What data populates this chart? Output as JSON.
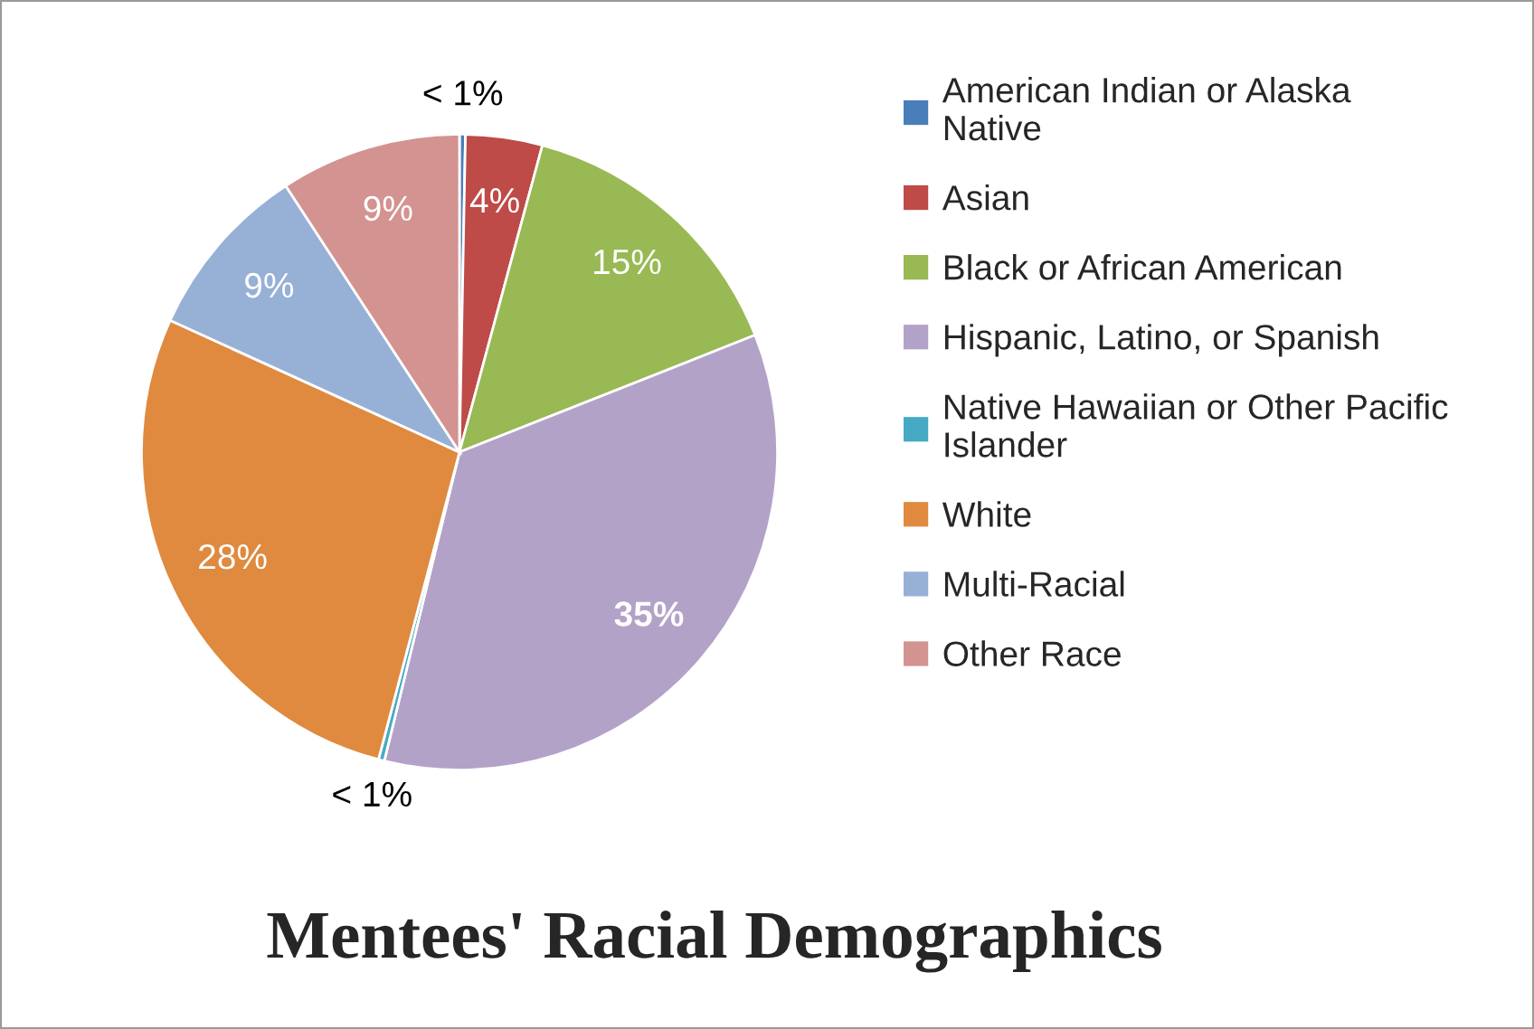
{
  "chart_data": {
    "type": "pie",
    "title": "Mentees' Racial Demographics",
    "categories": [
      "American Indian or Alaska Native",
      "Asian",
      "Black or African American",
      "Hispanic, Latino, or Spanish",
      "Native Hawaiian or Other Pacific Islander",
      "White",
      "Multi-Racial",
      "Other Race"
    ],
    "values": [
      0.3,
      3.9,
      14.8,
      34.8,
      0.3,
      27.7,
      9,
      9.2
    ],
    "value_labels": [
      "< 1%",
      "4%",
      "15%",
      "35%",
      "< 1%",
      "28%",
      "9%",
      "9%"
    ],
    "colors": [
      "#4a7ebb",
      "#be4b48",
      "#98b954",
      "#b3a2c8",
      "#46aac5",
      "#df8a3f",
      "#97b0d6",
      "#d39390"
    ],
    "legend": "right"
  }
}
